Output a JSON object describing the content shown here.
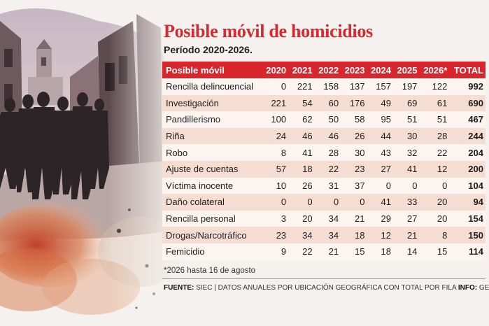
{
  "title": "Posible móvil de homicidios",
  "subtitle": "Período 2020-2026.",
  "table": {
    "headers": [
      "Posible móvil",
      "2020",
      "2021",
      "2022",
      "2023",
      "2024",
      "2025",
      "2026*",
      "TOTAL"
    ],
    "rows": [
      [
        "Rencilla delincuencial",
        "0",
        "221",
        "158",
        "137",
        "157",
        "197",
        "122",
        "992"
      ],
      [
        "Investigación",
        "221",
        "54",
        "60",
        "176",
        "49",
        "69",
        "61",
        "690"
      ],
      [
        "Pandillerismo",
        "100",
        "62",
        "50",
        "58",
        "95",
        "51",
        "51",
        "467"
      ],
      [
        "Riña",
        "24",
        "46",
        "46",
        "26",
        "44",
        "30",
        "28",
        "244"
      ],
      [
        "Robo",
        "8",
        "41",
        "28",
        "30",
        "43",
        "32",
        "22",
        "204"
      ],
      [
        "Ajuste de cuentas",
        "57",
        "18",
        "22",
        "23",
        "27",
        "41",
        "12",
        "200"
      ],
      [
        "Víctima inocente",
        "10",
        "26",
        "31",
        "37",
        "0",
        "0",
        "0",
        "104"
      ],
      [
        "Daño colateral",
        "0",
        "0",
        "0",
        "0",
        "41",
        "33",
        "20",
        "94"
      ],
      [
        "Rencilla personal",
        "3",
        "20",
        "34",
        "21",
        "29",
        "27",
        "20",
        "154"
      ],
      [
        "Drogas/Narcotráfico",
        "23",
        "34",
        "34",
        "18",
        "12",
        "21",
        "8",
        "150"
      ],
      [
        "Femicidio",
        "9",
        "22",
        "21",
        "15",
        "18",
        "14",
        "15",
        "114"
      ]
    ]
  },
  "footnote": "*2026 hasta 16 de agosto",
  "source": {
    "fuente_label": "FUENTE:",
    "fuente_text": " SIEC | DATOS ANUALES POR UBICACIÓN GEOGRÁFICA CON TOTAL POR FILA ",
    "info_label": "INFO:",
    "info_text": " GESE"
  },
  "colors": {
    "accent": "#d9252c",
    "title": "#d42a30",
    "row_even": "#f6ddd2",
    "row_odd": "#fbf4f1"
  }
}
